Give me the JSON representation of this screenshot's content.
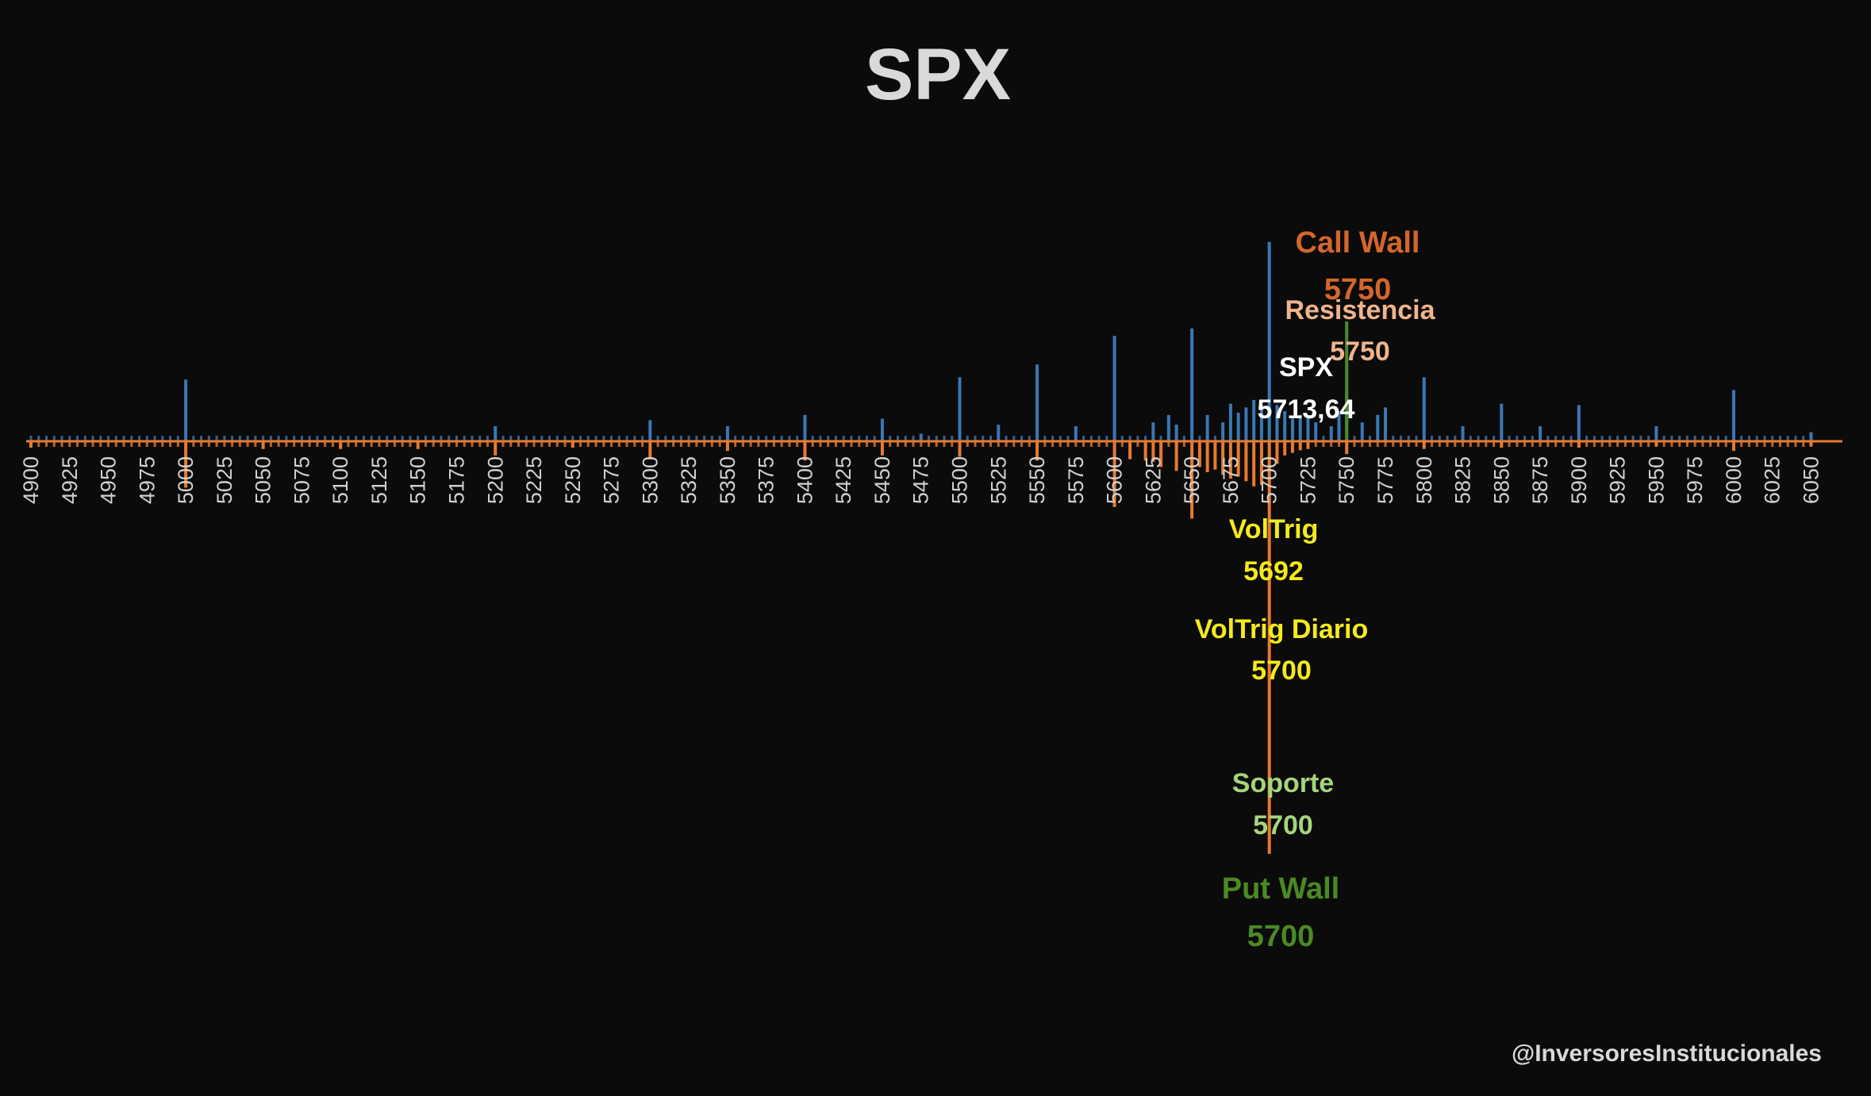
{
  "chart_data": {
    "type": "bar",
    "title": "SPX",
    "xlim": [
      4900,
      6060
    ],
    "ylim": [
      -650,
      250
    ],
    "x_ticks": [
      4900,
      4925,
      4950,
      4975,
      5000,
      5025,
      5050,
      5075,
      5100,
      5125,
      5150,
      5175,
      5200,
      5225,
      5250,
      5275,
      5300,
      5325,
      5350,
      5375,
      5400,
      5425,
      5450,
      5475,
      5500,
      5525,
      5550,
      5575,
      5600,
      5625,
      5650,
      5675,
      5700,
      5725,
      5750,
      5775,
      5800,
      5825,
      5850,
      5875,
      5900,
      5925,
      5950,
      5975,
      6000,
      6025,
      6050
    ],
    "strike_step": 5,
    "series": [
      {
        "color": "#3a78b5",
        "points": [
          [
            5000,
            82
          ],
          [
            5200,
            20
          ],
          [
            5300,
            28
          ],
          [
            5350,
            20
          ],
          [
            5400,
            35
          ],
          [
            5450,
            30
          ],
          [
            5475,
            10
          ],
          [
            5500,
            85
          ],
          [
            5525,
            22
          ],
          [
            5550,
            102
          ],
          [
            5575,
            20
          ],
          [
            5600,
            140
          ],
          [
            5625,
            25
          ],
          [
            5635,
            35
          ],
          [
            5640,
            22
          ],
          [
            5650,
            150
          ],
          [
            5660,
            35
          ],
          [
            5670,
            25
          ],
          [
            5675,
            50
          ],
          [
            5680,
            38
          ],
          [
            5685,
            45
          ],
          [
            5690,
            55
          ],
          [
            5695,
            48
          ],
          [
            5700,
            265
          ],
          [
            5705,
            48
          ],
          [
            5710,
            40
          ],
          [
            5715,
            30
          ],
          [
            5720,
            35
          ],
          [
            5725,
            32
          ],
          [
            5730,
            25
          ],
          [
            5740,
            20
          ],
          [
            5745,
            40
          ],
          [
            5750,
            65
          ],
          [
            5760,
            25
          ],
          [
            5770,
            35
          ],
          [
            5775,
            45
          ],
          [
            5800,
            85
          ],
          [
            5825,
            20
          ],
          [
            5850,
            50
          ],
          [
            5875,
            20
          ],
          [
            5900,
            48
          ],
          [
            5950,
            20
          ],
          [
            6000,
            68
          ],
          [
            6050,
            12
          ]
        ]
      },
      {
        "color": "#e87a2e",
        "points": [
          [
            4900,
            -10
          ],
          [
            5000,
            -72
          ],
          [
            5050,
            -12
          ],
          [
            5100,
            -12
          ],
          [
            5150,
            -12
          ],
          [
            5200,
            -22
          ],
          [
            5250,
            -10
          ],
          [
            5300,
            -28
          ],
          [
            5350,
            -15
          ],
          [
            5400,
            -30
          ],
          [
            5450,
            -22
          ],
          [
            5500,
            -24
          ],
          [
            5550,
            -30
          ],
          [
            5600,
            -102
          ],
          [
            5610,
            -28
          ],
          [
            5620,
            -30
          ],
          [
            5625,
            -32
          ],
          [
            5630,
            -40
          ],
          [
            5640,
            -46
          ],
          [
            5650,
            -120
          ],
          [
            5655,
            -40
          ],
          [
            5660,
            -48
          ],
          [
            5665,
            -44
          ],
          [
            5670,
            -52
          ],
          [
            5675,
            -58
          ],
          [
            5680,
            -55
          ],
          [
            5685,
            -62
          ],
          [
            5690,
            -70
          ],
          [
            5695,
            -68
          ],
          [
            5700,
            -640
          ],
          [
            5705,
            -35
          ],
          [
            5710,
            -22
          ],
          [
            5715,
            -18
          ],
          [
            5720,
            -14
          ],
          [
            5725,
            -12
          ],
          [
            5750,
            -20
          ],
          [
            5800,
            -12
          ],
          [
            5850,
            -10
          ],
          [
            5900,
            -10
          ],
          [
            5950,
            -8
          ],
          [
            6000,
            -15
          ],
          [
            6050,
            -8
          ]
        ]
      }
    ],
    "levels": [
      {
        "label": "Call Wall",
        "value": "5750",
        "strike": 5750,
        "color": "#d4662a"
      },
      {
        "label": "Resistencia",
        "value": "5750",
        "strike": 5750,
        "color": "#f0b48c"
      },
      {
        "label": "SPX",
        "value": "5713,64",
        "strike": 5713.64,
        "color": "#ffffff"
      },
      {
        "label": "VolTrig",
        "value": "5692",
        "strike": 5692,
        "color": "#f4ea1c"
      },
      {
        "label": "VolTrig Diario",
        "value": "5700",
        "strike": 5700,
        "color": "#f4ea1c"
      },
      {
        "label": "Soporte",
        "value": "5700",
        "strike": 5700,
        "color": "#a5d67b"
      },
      {
        "label": "Put Wall",
        "value": "5700",
        "strike": 5700,
        "color": "#4a8a24"
      }
    ]
  },
  "watermark": "@InversoresInstitucionales"
}
